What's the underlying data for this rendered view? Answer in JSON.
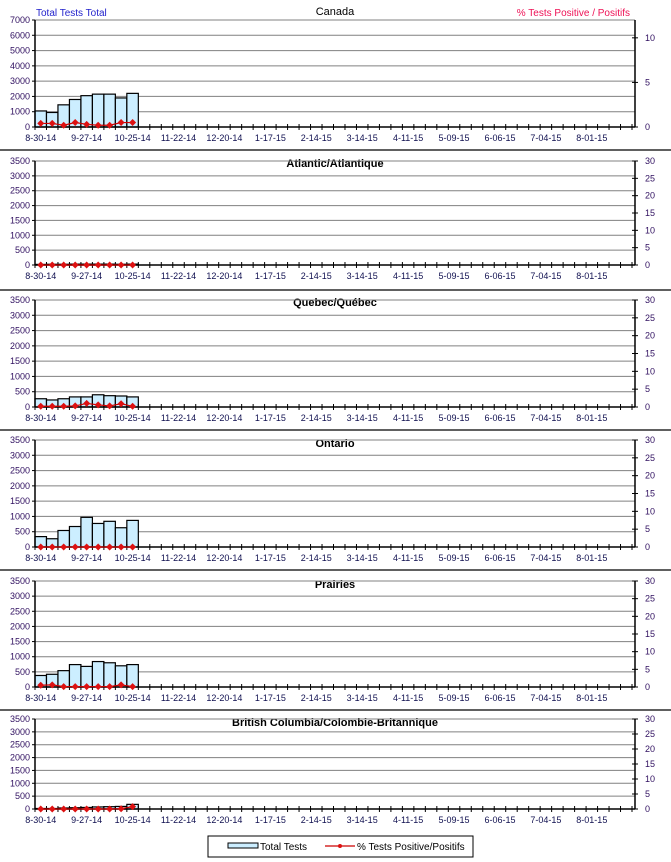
{
  "header": {
    "left_axis_title": "Total Tests Total",
    "right_axis_title": "% Tests Positive / Positifs"
  },
  "legend": {
    "bar_label": "Total Tests",
    "line_label": "% Tests Positive/Positifs"
  },
  "colors": {
    "bar_fill": "#cceeff",
    "bar_stroke": "#000000",
    "line": "#cc0000",
    "marker": "#dd1111",
    "grid": "#808080",
    "left_title": "#2222cc",
    "right_title": "#ee1155"
  },
  "chart_data": {
    "type": "bar+line",
    "x_tick_labels": [
      "8-30-14",
      "9-27-14",
      "10-25-14",
      "11-22-14",
      "12-20-14",
      "1-17-15",
      "2-14-15",
      "3-14-15",
      "4-11-15",
      "5-09-15",
      "6-06-15",
      "7-04-15",
      "8-01-15"
    ],
    "weeks_with_data": [
      "8-30-14",
      "9-06-14",
      "9-13-14",
      "9-20-14",
      "9-27-14",
      "10-04-14",
      "10-11-14",
      "10-18-14",
      "10-25-14"
    ],
    "legend_placement": "bottom-center",
    "grid": true,
    "panels": [
      {
        "title": "Canada",
        "ylim_left": [
          0,
          7000
        ],
        "left_step": 1000,
        "ylim_right": [
          0,
          12
        ],
        "right_ticks": [
          0,
          5,
          10
        ],
        "total_tests": [
          1050,
          950,
          1450,
          1800,
          2050,
          2150,
          2150,
          1900,
          2200
        ],
        "pct_positive": [
          0.4,
          0.4,
          0.2,
          0.5,
          0.3,
          0.2,
          0.2,
          0.5,
          0.5
        ]
      },
      {
        "title": "Atlantic/Atlantique",
        "ylim_left": [
          0,
          3500
        ],
        "left_step": 500,
        "ylim_right": [
          0,
          30
        ],
        "right_ticks": [
          0,
          5,
          10,
          15,
          20,
          25,
          30
        ],
        "total_tests": [
          20,
          25,
          25,
          30,
          30,
          30,
          30,
          25,
          30
        ],
        "pct_positive": [
          0,
          0,
          0,
          0,
          0,
          0,
          0,
          0,
          0
        ]
      },
      {
        "title": "Quebec/Québec",
        "ylim_left": [
          0,
          3500
        ],
        "left_step": 500,
        "ylim_right": [
          0,
          30
        ],
        "right_ticks": [
          0,
          5,
          10,
          15,
          20,
          25,
          30
        ],
        "total_tests": [
          270,
          230,
          270,
          330,
          330,
          400,
          370,
          360,
          330
        ],
        "pct_positive": [
          0.2,
          0.2,
          0.2,
          0.3,
          1.0,
          0.6,
          0.3,
          0.9,
          0.2
        ]
      },
      {
        "title": "Ontario",
        "ylim_left": [
          0,
          3500
        ],
        "left_step": 500,
        "ylim_right": [
          0,
          30
        ],
        "right_ticks": [
          0,
          5,
          10,
          15,
          20,
          25,
          30
        ],
        "total_tests": [
          340,
          270,
          540,
          670,
          970,
          770,
          840,
          630,
          870
        ],
        "pct_positive": [
          0,
          0,
          0,
          0,
          0,
          0,
          0,
          0,
          0
        ]
      },
      {
        "title": "Prairies",
        "ylim_left": [
          0,
          3500
        ],
        "left_step": 500,
        "ylim_right": [
          0,
          30
        ],
        "right_ticks": [
          0,
          5,
          10,
          15,
          20,
          25,
          30
        ],
        "total_tests": [
          380,
          420,
          540,
          740,
          680,
          840,
          800,
          700,
          740
        ],
        "pct_positive": [
          0.5,
          0.6,
          0.1,
          0.1,
          0.1,
          0.1,
          0.1,
          0.6,
          0.1
        ]
      },
      {
        "title": "British Columbia/Colombie-Britannique",
        "ylim_left": [
          0,
          3500
        ],
        "left_step": 500,
        "ylim_right": [
          0,
          30
        ],
        "right_ticks": [
          0,
          5,
          10,
          15,
          20,
          25,
          30
        ],
        "total_tests": [
          20,
          20,
          40,
          50,
          60,
          80,
          90,
          100,
          180
        ],
        "pct_positive": [
          0,
          0,
          0,
          0,
          0,
          0,
          0,
          0.1,
          0.8
        ]
      }
    ]
  }
}
